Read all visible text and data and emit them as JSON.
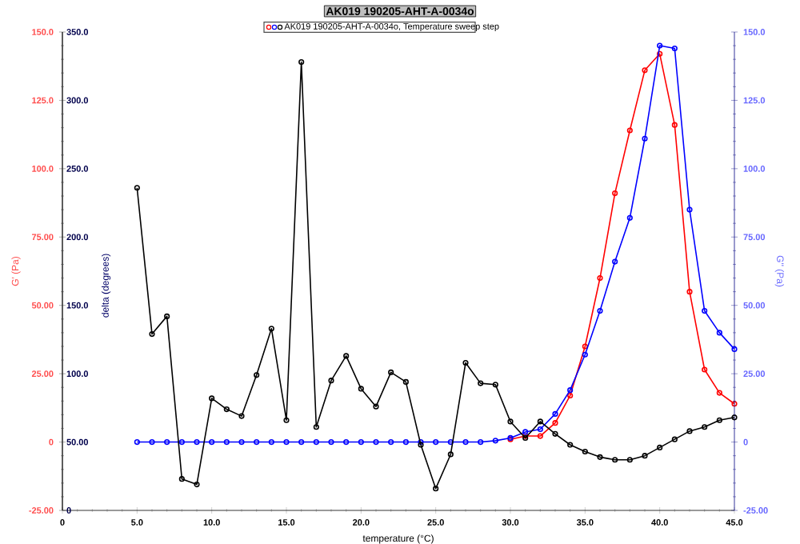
{
  "chart_data": {
    "type": "line",
    "title": "AK019 190205-AHT-A-0034o",
    "legend_title": "AK019 190205-AHT-A-0034o, Temperature sweep step",
    "xlabel": "temperature (°C)",
    "ylabel": "G' (Pa)",
    "y2label": "G'' (Pa)",
    "y3label": "delta (degrees)",
    "x": [
      5,
      6,
      7,
      8,
      9,
      10,
      11,
      12,
      13,
      14,
      15,
      16,
      17,
      18,
      19,
      20,
      21,
      22,
      23,
      24,
      25,
      26,
      27,
      28,
      29,
      30,
      31,
      32,
      33,
      34,
      35,
      36,
      37,
      38,
      39,
      40,
      41,
      42,
      43,
      44,
      45
    ],
    "series": [
      {
        "color": "#000000",
        "axis": "y3",
        "values": [
          236,
          129,
          142,
          23,
          19,
          82,
          74,
          69,
          99,
          133,
          66,
          328,
          61,
          95,
          113,
          89,
          76,
          101,
          94,
          48,
          16,
          41,
          108,
          93,
          92,
          65,
          53,
          65,
          56,
          48,
          43,
          39,
          37,
          37,
          40,
          46,
          52,
          58,
          61,
          66,
          68
        ]
      },
      {
        "color": "#0000ff",
        "axis": "y2",
        "values": [
          0,
          0,
          0,
          0,
          0,
          0,
          0,
          0,
          0,
          0,
          0,
          0,
          0,
          0,
          0,
          0,
          0,
          0,
          0,
          0,
          0,
          0,
          0,
          0,
          0.5,
          1.5,
          3.7,
          4.7,
          10.3,
          19,
          32,
          48,
          66,
          82,
          111,
          145,
          144,
          85,
          48,
          40,
          34
        ]
      },
      {
        "color": "#ff0000",
        "values": [
          null,
          null,
          null,
          null,
          null,
          null,
          null,
          null,
          null,
          null,
          null,
          null,
          null,
          null,
          null,
          null,
          null,
          null,
          null,
          null,
          null,
          null,
          null,
          null,
          null,
          1,
          2.2,
          2.2,
          7,
          17,
          35,
          60,
          91,
          114,
          136,
          142,
          116,
          55,
          26.5,
          18,
          14
        ]
      }
    ],
    "xlim": [
      0,
      45
    ],
    "xticks": [
      0,
      {
        "value": 5,
        "label": "5.0"
      },
      {
        "value": 10,
        "label": "10.0"
      },
      {
        "value": 15,
        "label": "15.0"
      },
      {
        "value": 20,
        "label": "20.0"
      },
      {
        "value": 25,
        "label": "25.0"
      },
      {
        "value": 30,
        "label": "30.0"
      },
      {
        "value": 35,
        "label": "35.0"
      },
      {
        "value": 40,
        "label": "40.0"
      },
      {
        "value": 45,
        "label": "45.0"
      }
    ],
    "ylim": [
      -25,
      150
    ],
    "yticks": [
      {
        "value": -25,
        "label": "-25.00"
      },
      0,
      {
        "value": 25,
        "label": "25.00"
      },
      {
        "value": 50,
        "label": "50.00"
      },
      {
        "value": 75,
        "label": "75.00"
      },
      {
        "value": 100,
        "label": "100.0"
      },
      {
        "value": 125,
        "label": "125.0"
      },
      {
        "value": 150,
        "label": "150.0"
      }
    ],
    "y2lim": [
      -25,
      150
    ],
    "y2ticks": [
      {
        "value": -25,
        "label": "-25.00"
      },
      0,
      {
        "value": 25,
        "label": "25.00"
      },
      {
        "value": 50,
        "label": "50.00"
      },
      {
        "value": 75,
        "label": "75.00"
      },
      {
        "value": 100,
        "label": "100.0"
      },
      {
        "value": 125,
        "label": "125.0"
      },
      {
        "value": 150,
        "label": "150.0"
      }
    ],
    "y3lim": [
      0,
      350
    ],
    "y3ticks": [
      0,
      {
        "value": 50,
        "label": "50.00"
      },
      {
        "value": 100,
        "label": "100.0"
      },
      {
        "value": 150,
        "label": "150.0"
      },
      {
        "value": 200,
        "label": "200.0"
      },
      {
        "value": 250,
        "label": "250.0"
      },
      {
        "value": 300,
        "label": "300.0"
      },
      {
        "value": 350,
        "label": "350.0"
      }
    ],
    "marker": "circle",
    "line_style": "solid",
    "grid": false
  }
}
